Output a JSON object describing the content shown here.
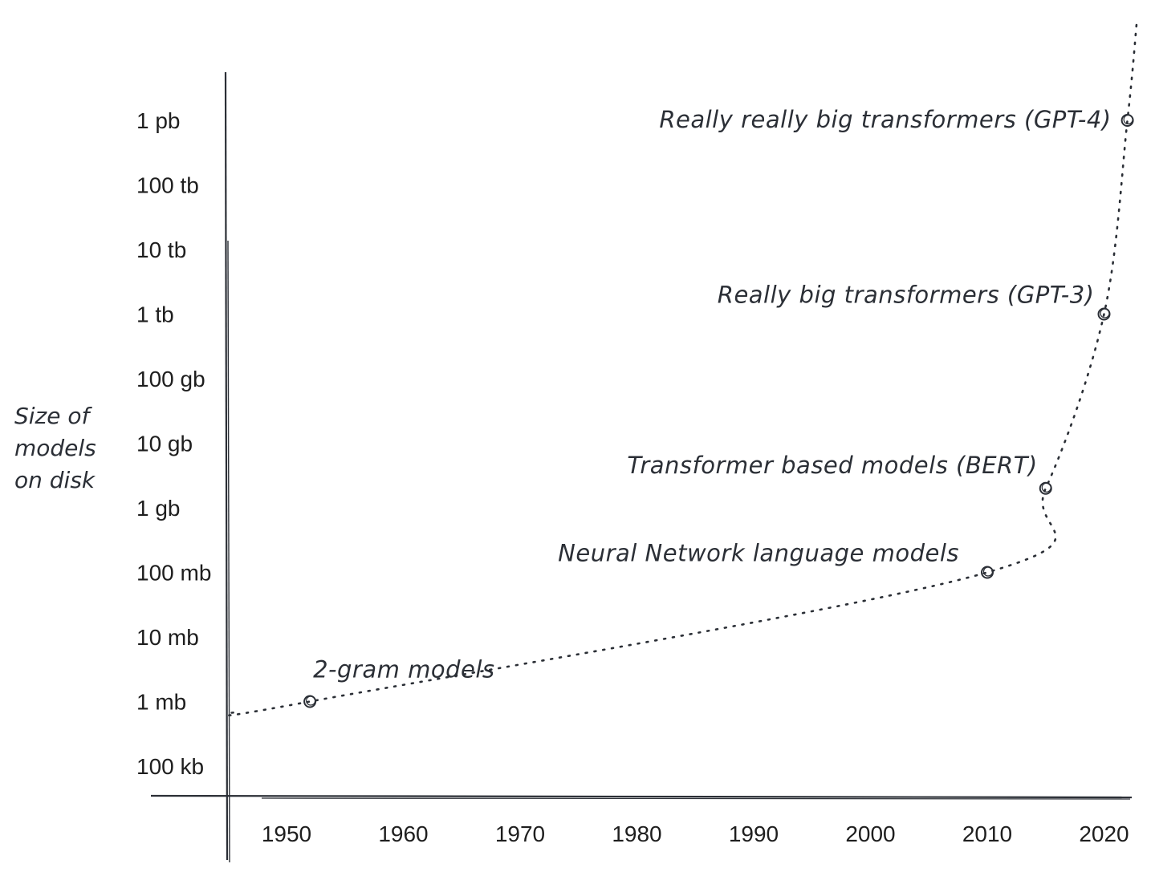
{
  "chart_data": {
    "type": "line",
    "title": "",
    "xlabel": "",
    "ylabel": [
      "Size of",
      "models",
      "on disk"
    ],
    "x_ticks": [
      "1950",
      "1960",
      "1970",
      "1980",
      "1990",
      "2000",
      "2010",
      "2020"
    ],
    "y_ticks": [
      "100 kb",
      "1 mb",
      "10 mb",
      "100 mb",
      "1 gb",
      "10 gb",
      "100 gb",
      "1 tb",
      "10 tb",
      "100 tb",
      "1 pb"
    ],
    "y_scale": "log",
    "xlim": [
      1945,
      2024
    ],
    "grid": false,
    "points": [
      {
        "x": 1952,
        "y": "1 mb",
        "label": "2-gram models"
      },
      {
        "x": 2010,
        "y": "100 mb",
        "label": "Neural Network language models"
      },
      {
        "x": 2015,
        "y": "2 gb",
        "label": "Transformer based models (BERT)"
      },
      {
        "x": 2020,
        "y": "1 tb",
        "label": "Really big transformers (GPT-3)"
      },
      {
        "x": 2022,
        "y": "1 pb",
        "label": "Really really big transformers (GPT-4)"
      }
    ],
    "trend_line": "dotted"
  },
  "colors": {
    "ink": "#2b2f36",
    "text": "#1e1e1e"
  }
}
